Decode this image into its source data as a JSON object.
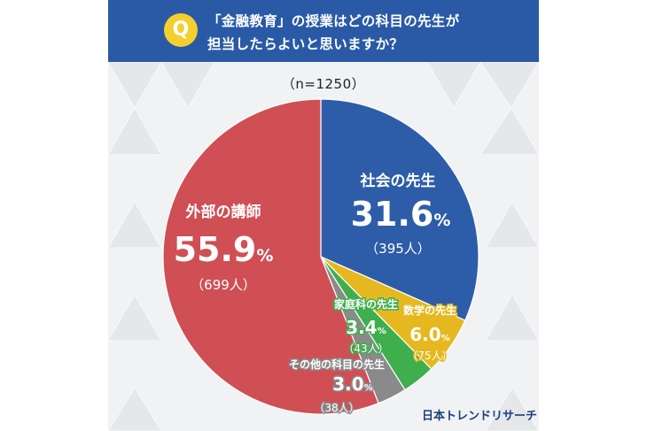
{
  "header": {
    "badge": "Q",
    "question_line1": "「金融教育」の授業はどの科目の先生が",
    "question_line2": "担当したらよいと思いますか？"
  },
  "sample_size": "（n=1250）",
  "brand": "日本トレンドリサーチ",
  "colors": {
    "header": "#2a5aa6",
    "badge": "#f4cf2e"
  },
  "chart_data": {
    "type": "pie",
    "title": "「金融教育」の授業はどの科目の先生が担当したらよいと思いますか？",
    "n": 1250,
    "slices": [
      {
        "name": "社会の先生",
        "value": 31.6,
        "count": 395,
        "pct_label": "31.6",
        "count_label": "（395人）",
        "color": "#2d5da8",
        "text_color": "#ffffff"
      },
      {
        "name": "数学の先生",
        "value": 6.0,
        "count": 75,
        "pct_label": "6.0",
        "count_label": "（75人）",
        "color": "#e6b81f",
        "text_color": "#ffffff"
      },
      {
        "name": "家庭科の先生",
        "value": 3.4,
        "count": 43,
        "pct_label": "3.4",
        "count_label": "（43人）",
        "color": "#3fae4d",
        "text_color": "#ffffff"
      },
      {
        "name": "その他の科目の先生",
        "value": 3.0,
        "count": 38,
        "pct_label": "3.0",
        "count_label": "（38人）",
        "color": "#8a8a8a",
        "text_color": "#ffffff"
      },
      {
        "name": "外部の講師",
        "value": 55.9,
        "count": 699,
        "pct_label": "55.9",
        "count_label": "（699人）",
        "color": "#cf4f55",
        "text_color": "#ffffff"
      }
    ],
    "unit": "%"
  }
}
